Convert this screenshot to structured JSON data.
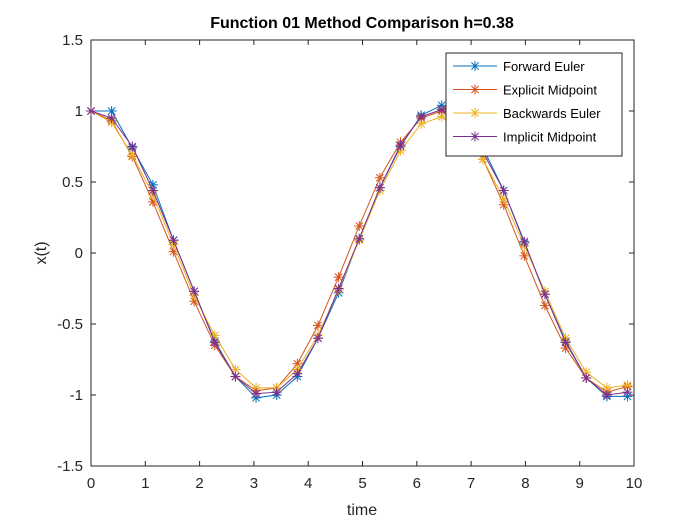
{
  "chart_data": {
    "type": "line",
    "title": "Function 01 Method Comparison h=0.38",
    "xlabel": "time",
    "ylabel": "x(t)",
    "xlim": [
      0,
      10
    ],
    "ylim": [
      -1.5,
      1.5
    ],
    "xticks": [
      "0",
      "1",
      "2",
      "3",
      "4",
      "5",
      "6",
      "7",
      "8",
      "9",
      "10"
    ],
    "yticks": [
      "-1.5",
      "-1",
      "-0.5",
      "0",
      "0.5",
      "1",
      "1.5"
    ],
    "grid": false,
    "legend_position": "top-right",
    "marker": "asterisk",
    "x": [
      0,
      0.38,
      0.76,
      1.14,
      1.52,
      1.9,
      2.28,
      2.66,
      3.04,
      3.42,
      3.8,
      4.18,
      4.56,
      4.94,
      5.32,
      5.7,
      6.08,
      6.46,
      6.84,
      7.22,
      7.6,
      7.98,
      8.36,
      8.74,
      9.12,
      9.5,
      9.88
    ],
    "series": [
      {
        "name": "Forward Euler",
        "color": "#0072BD",
        "values": [
          1.0,
          1.0,
          0.74,
          0.48,
          0.09,
          -0.27,
          -0.62,
          -0.87,
          -1.02,
          -1.0,
          -0.87,
          -0.6,
          -0.28,
          0.1,
          0.46,
          0.75,
          0.97,
          1.04,
          0.9,
          0.74,
          0.44,
          0.07,
          -0.29,
          -0.62,
          -0.88,
          -1.01,
          -1.01
        ]
      },
      {
        "name": "Explicit Midpoint",
        "color": "#D95319",
        "values": [
          1.0,
          0.93,
          0.68,
          0.36,
          0.01,
          -0.34,
          -0.65,
          -0.87,
          -0.97,
          -0.95,
          -0.78,
          -0.51,
          -0.17,
          0.19,
          0.53,
          0.78,
          0.95,
          1.0,
          0.91,
          0.66,
          0.34,
          -0.02,
          -0.37,
          -0.67,
          -0.88,
          -0.98,
          -0.94
        ]
      },
      {
        "name": "Backwards Euler",
        "color": "#EDB120",
        "values": [
          1.0,
          0.92,
          0.69,
          0.41,
          0.06,
          -0.3,
          -0.58,
          -0.82,
          -0.95,
          -0.95,
          -0.82,
          -0.58,
          -0.26,
          0.09,
          0.44,
          0.72,
          0.91,
          0.96,
          0.87,
          0.66,
          0.38,
          0.05,
          -0.27,
          -0.6,
          -0.84,
          -0.95,
          -0.93
        ]
      },
      {
        "name": "Implicit Midpoint",
        "color": "#7E2F8E",
        "values": [
          1.0,
          0.95,
          0.75,
          0.44,
          0.09,
          -0.27,
          -0.63,
          -0.87,
          -0.99,
          -0.98,
          -0.85,
          -0.6,
          -0.25,
          0.1,
          0.46,
          0.76,
          0.96,
          1.01,
          0.93,
          0.71,
          0.44,
          0.08,
          -0.29,
          -0.63,
          -0.88,
          -1.0,
          -0.98
        ]
      }
    ]
  }
}
